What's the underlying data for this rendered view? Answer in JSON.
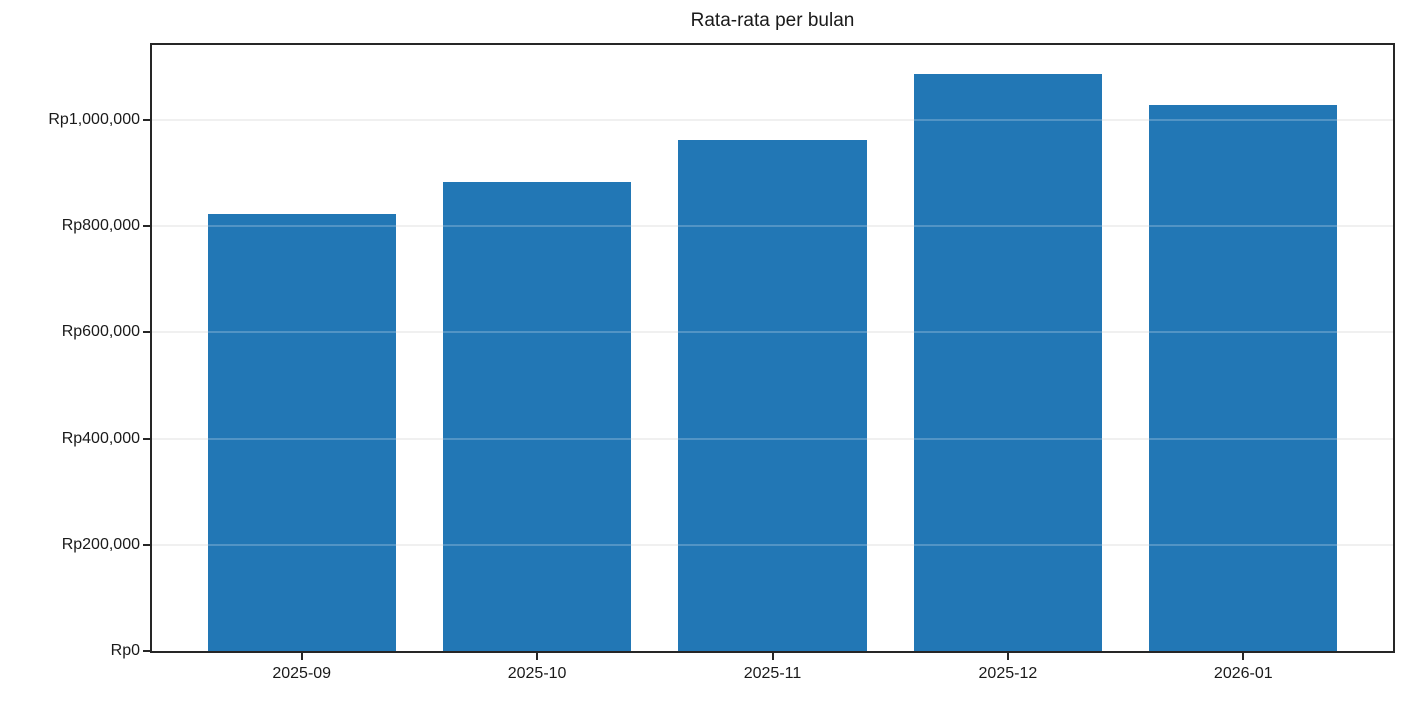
{
  "chart_data": {
    "type": "bar",
    "title": "Rata-rata per bulan",
    "categories": [
      "2025-09",
      "2025-10",
      "2025-11",
      "2025-12",
      "2026-01"
    ],
    "values": [
      823000,
      884000,
      962000,
      1087000,
      1028000
    ],
    "currency_prefix": "Rp",
    "y_ticks": [
      {
        "label": "Rp0",
        "value": 0
      },
      {
        "label": "Rp200,000",
        "value": 200000
      },
      {
        "label": "Rp400,000",
        "value": 400000
      },
      {
        "label": "Rp600,000",
        "value": 600000
      },
      {
        "label": "Rp800,000",
        "value": 800000
      },
      {
        "label": "Rp1,000,000",
        "value": 1000000
      }
    ],
    "ylim": [
      0,
      1141000
    ],
    "xlabel": "",
    "ylabel": "",
    "grid": "horizontal",
    "legend": "none",
    "bar_width_fraction": 0.8,
    "colors": {
      "bar": "#2277b5",
      "grid": "#ececec",
      "spine": "#262626",
      "text": "#1a1a1a",
      "background": "#ffffff"
    }
  }
}
